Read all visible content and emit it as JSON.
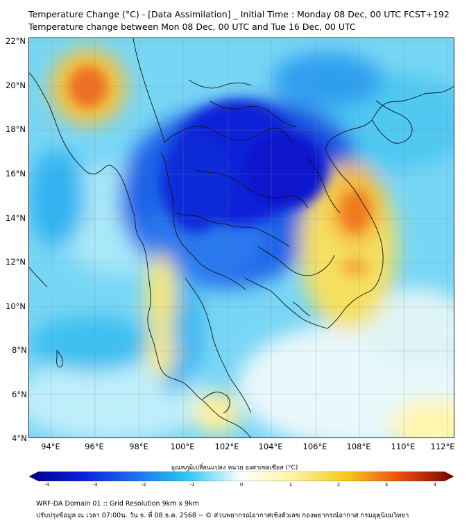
{
  "title": {
    "line1": "Temperature Change (°C) - [Data Assimilation] _ Initial Time : Monday 08 Dec, 00 UTC FCST+192",
    "line2": "Temperature change between Mon 08 Dec, 00 UTC and Tue 16 Dec, 00 UTC"
  },
  "axes": {
    "lat_labels": [
      "22°N",
      "20°N",
      "18°N",
      "16°N",
      "14°N",
      "12°N",
      "10°N",
      "8°N",
      "6°N",
      "4°N"
    ],
    "lon_labels": [
      "94°E",
      "96°E",
      "98°E",
      "100°E",
      "102°E",
      "104°E",
      "106°E",
      "108°E",
      "110°E",
      "112°E"
    ]
  },
  "colorbar": {
    "label": "อุณหภูมิเปลี่ยนแปลง หน่วย องศาเซลเซียส (°C)",
    "ticks": [
      "-4",
      "-3",
      "-2",
      "-1",
      "0",
      "1",
      "2",
      "3",
      "4"
    ],
    "range": [
      -4,
      4
    ]
  },
  "footer": {
    "line1": "WRF-DA Domain 01 :: Grid Resolution 9km x 9km",
    "line2": "ปรับปรุงข้อมูล ณ เวลา 07:00น. วัน จ. ที่ 08 ธ.ค. 2568 -- © ส่วนพยากรณ์อากาศเชิงตัวเลข กองพยากรณ์อากาศ กรมอุตุนิยมวิทยา"
  },
  "colors": {
    "deep_blue": "#0a1ed8",
    "blue": "#1e6ef0",
    "cyan": "#28c8f0",
    "light_cyan": "#b4ecfa",
    "pale_yellow": "#fffac8",
    "yellow": "#f5d21e",
    "orange": "#f0780f",
    "red": "#8c0a0a"
  }
}
